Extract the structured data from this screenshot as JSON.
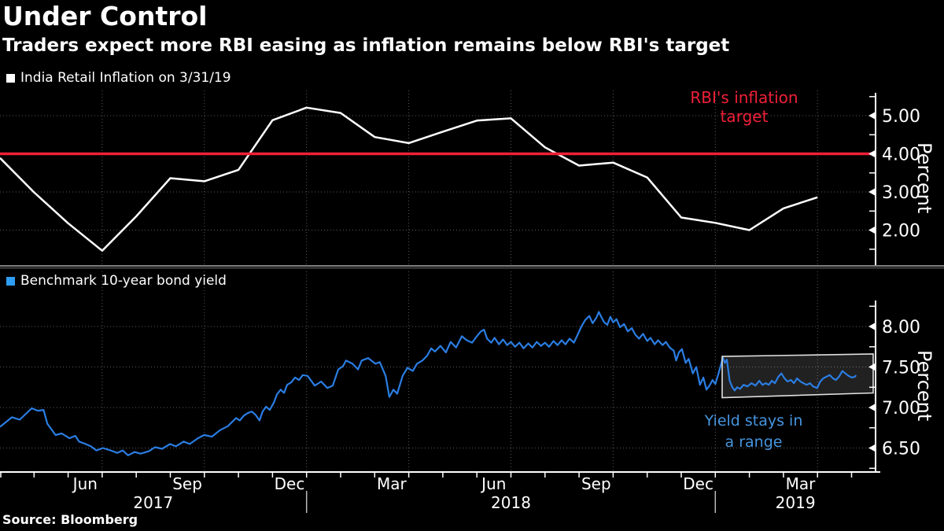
{
  "header": {
    "title": "Under Control",
    "subtitle": "Traders expect more RBI easing as inflation remains below RBI's target"
  },
  "source": "Source: Bloomberg",
  "colors": {
    "background": "#000000",
    "text": "#ffffff",
    "grid": "#5a5a5a",
    "axis": "#ffffff",
    "separator": "#2e2e2e",
    "separator_edge": "#8c8c8c",
    "highlight_box_border": "#e0e0e0"
  },
  "x_axis": {
    "months_total": 25,
    "quarter_gridlines_t": [
      3,
      6,
      9,
      12,
      15,
      18,
      21,
      24
    ],
    "month_labels": [
      {
        "t": 2.5,
        "label": "Jun"
      },
      {
        "t": 5.5,
        "label": "Sep"
      },
      {
        "t": 8.5,
        "label": "Dec"
      },
      {
        "t": 11.5,
        "label": "Mar"
      },
      {
        "t": 14.5,
        "label": "Jun"
      },
      {
        "t": 17.5,
        "label": "Sep"
      },
      {
        "t": 20.5,
        "label": "Dec"
      },
      {
        "t": 23.5,
        "label": "Mar"
      }
    ],
    "year_labels": [
      {
        "t": 4.5,
        "label": "2017"
      },
      {
        "t": 15.0,
        "label": "2018"
      },
      {
        "t": 23.35,
        "label": "2019"
      }
    ],
    "year_separators_t": [
      9,
      21
    ]
  },
  "chart_data": [
    {
      "type": "line",
      "panel": "top",
      "legend": "India Retail Inflation on 3/31/19",
      "legend_color": "#ffffff",
      "reference_line": {
        "value": 4.0,
        "label": "RBI's inflation\ntarget",
        "color": "#ef2038"
      },
      "y_axis": {
        "unit_label": "Percent",
        "ticks": [
          {
            "v": 5.0,
            "label": "5.00"
          },
          {
            "v": 4.0,
            "label": "4.00"
          },
          {
            "v": 3.0,
            "label": "3.00"
          },
          {
            "v": 2.0,
            "label": "2.00"
          }
        ],
        "minor": [
          5.5,
          4.5,
          3.5,
          2.5,
          1.5
        ]
      },
      "series": [
        {
          "name": "India Retail Inflation (YoY %)",
          "color": "#ffffff",
          "x_months_since_apr2017": [
            0,
            1,
            2,
            3,
            4,
            5,
            6,
            7,
            8,
            9,
            10,
            11,
            12,
            13,
            14,
            15,
            16,
            17,
            18,
            19,
            20,
            21,
            22,
            23,
            24
          ],
          "values": [
            3.89,
            2.99,
            2.18,
            1.46,
            2.36,
            3.36,
            3.28,
            3.58,
            4.88,
            5.21,
            5.07,
            4.44,
            4.28,
            4.58,
            4.87,
            4.93,
            4.17,
            3.69,
            3.77,
            3.38,
            2.33,
            2.19,
            2.0,
            2.57,
            2.86
          ]
        }
      ]
    },
    {
      "type": "line",
      "panel": "bottom",
      "legend": "Benchmark 10-year bond yield",
      "legend_color": "#2e9df4",
      "annotation": {
        "text": "Yield stays in\na range",
        "color": "#4695e0"
      },
      "highlight_box": {
        "t_range": [
          21.2,
          25.64
        ],
        "top_values": [
          7.63,
          7.66
        ],
        "bottom_values": [
          7.12,
          7.18
        ]
      },
      "y_axis": {
        "unit_label": "Percent",
        "ticks": [
          {
            "v": 8.0,
            "label": "8.00"
          },
          {
            "v": 7.5,
            "label": "7.50"
          },
          {
            "v": 7.0,
            "label": "7.00"
          },
          {
            "v": 6.5,
            "label": "6.50"
          }
        ],
        "minor": [
          8.25,
          7.75,
          7.25,
          6.75,
          6.25
        ]
      },
      "series": [
        {
          "name": "Benchmark 10-year bond yield (%)",
          "color": "#2b7de2",
          "points": [
            [
              0,
              6.76
            ],
            [
              0.35,
              6.88
            ],
            [
              0.58,
              6.85
            ],
            [
              0.93,
              6.99
            ],
            [
              1.11,
              6.96
            ],
            [
              1.28,
              6.97
            ],
            [
              1.39,
              6.8
            ],
            [
              1.63,
              6.66
            ],
            [
              1.81,
              6.68
            ],
            [
              2.04,
              6.62
            ],
            [
              2.21,
              6.65
            ],
            [
              2.32,
              6.58
            ],
            [
              2.51,
              6.55
            ],
            [
              2.67,
              6.52
            ],
            [
              2.83,
              6.47
            ],
            [
              3.02,
              6.5
            ],
            [
              3.25,
              6.47
            ],
            [
              3.44,
              6.44
            ],
            [
              3.6,
              6.47
            ],
            [
              3.76,
              6.41
            ],
            [
              3.95,
              6.45
            ],
            [
              4.13,
              6.43
            ],
            [
              4.37,
              6.46
            ],
            [
              4.55,
              6.51
            ],
            [
              4.76,
              6.49
            ],
            [
              4.99,
              6.55
            ],
            [
              5.16,
              6.52
            ],
            [
              5.39,
              6.58
            ],
            [
              5.57,
              6.55
            ],
            [
              5.81,
              6.62
            ],
            [
              5.99,
              6.66
            ],
            [
              6.22,
              6.64
            ],
            [
              6.46,
              6.72
            ],
            [
              6.69,
              6.77
            ],
            [
              6.93,
              6.87
            ],
            [
              7.04,
              6.84
            ],
            [
              7.16,
              6.9
            ],
            [
              7.27,
              6.93
            ],
            [
              7.39,
              6.95
            ],
            [
              7.5,
              6.91
            ],
            [
              7.62,
              6.84
            ],
            [
              7.71,
              6.95
            ],
            [
              7.81,
              7.01
            ],
            [
              7.92,
              6.97
            ],
            [
              8.04,
              7.06
            ],
            [
              8.13,
              7.16
            ],
            [
              8.24,
              7.22
            ],
            [
              8.34,
              7.18
            ],
            [
              8.43,
              7.28
            ],
            [
              8.55,
              7.31
            ],
            [
              8.66,
              7.37
            ],
            [
              8.78,
              7.34
            ],
            [
              8.89,
              7.4
            ],
            [
              9.03,
              7.39
            ],
            [
              9.24,
              7.27
            ],
            [
              9.43,
              7.32
            ],
            [
              9.61,
              7.24
            ],
            [
              9.77,
              7.27
            ],
            [
              9.93,
              7.47
            ],
            [
              10.07,
              7.51
            ],
            [
              10.16,
              7.58
            ],
            [
              10.35,
              7.54
            ],
            [
              10.51,
              7.47
            ],
            [
              10.62,
              7.58
            ],
            [
              10.81,
              7.61
            ],
            [
              11.02,
              7.54
            ],
            [
              11.15,
              7.56
            ],
            [
              11.32,
              7.39
            ],
            [
              11.43,
              7.13
            ],
            [
              11.55,
              7.22
            ],
            [
              11.66,
              7.17
            ],
            [
              11.82,
              7.39
            ],
            [
              11.96,
              7.49
            ],
            [
              12.12,
              7.45
            ],
            [
              12.24,
              7.54
            ],
            [
              12.4,
              7.58
            ],
            [
              12.54,
              7.64
            ],
            [
              12.66,
              7.73
            ],
            [
              12.77,
              7.69
            ],
            [
              12.93,
              7.76
            ],
            [
              13.09,
              7.68
            ],
            [
              13.23,
              7.81
            ],
            [
              13.39,
              7.74
            ],
            [
              13.56,
              7.88
            ],
            [
              13.7,
              7.83
            ],
            [
              13.86,
              7.8
            ],
            [
              14.0,
              7.88
            ],
            [
              14.12,
              7.94
            ],
            [
              14.21,
              7.96
            ],
            [
              14.3,
              7.85
            ],
            [
              14.42,
              7.8
            ],
            [
              14.52,
              7.86
            ],
            [
              14.65,
              7.78
            ],
            [
              14.77,
              7.84
            ],
            [
              14.89,
              7.77
            ],
            [
              15.0,
              7.81
            ],
            [
              15.12,
              7.75
            ],
            [
              15.25,
              7.8
            ],
            [
              15.37,
              7.73
            ],
            [
              15.51,
              7.79
            ],
            [
              15.63,
              7.74
            ],
            [
              15.76,
              7.81
            ],
            [
              15.88,
              7.76
            ],
            [
              16.0,
              7.8
            ],
            [
              16.12,
              7.75
            ],
            [
              16.25,
              7.82
            ],
            [
              16.37,
              7.77
            ],
            [
              16.49,
              7.83
            ],
            [
              16.6,
              7.78
            ],
            [
              16.72,
              7.85
            ],
            [
              16.85,
              7.8
            ],
            [
              16.95,
              7.89
            ],
            [
              17.07,
              8.0
            ],
            [
              17.18,
              8.08
            ],
            [
              17.3,
              8.13
            ],
            [
              17.4,
              8.04
            ],
            [
              17.51,
              8.11
            ],
            [
              17.58,
              8.18
            ],
            [
              17.65,
              8.12
            ],
            [
              17.74,
              8.05
            ],
            [
              17.83,
              8.02
            ],
            [
              17.92,
              8.12
            ],
            [
              18.0,
              8.05
            ],
            [
              18.1,
              8.09
            ],
            [
              18.2,
              7.99
            ],
            [
              18.32,
              8.03
            ],
            [
              18.43,
              7.94
            ],
            [
              18.55,
              7.98
            ],
            [
              18.65,
              7.9
            ],
            [
              18.76,
              7.85
            ],
            [
              18.88,
              7.91
            ],
            [
              19.0,
              7.82
            ],
            [
              19.1,
              7.86
            ],
            [
              19.22,
              7.78
            ],
            [
              19.32,
              7.83
            ],
            [
              19.45,
              7.77
            ],
            [
              19.55,
              7.81
            ],
            [
              19.66,
              7.74
            ],
            [
              19.78,
              7.7
            ],
            [
              19.85,
              7.58
            ],
            [
              19.93,
              7.68
            ],
            [
              20.02,
              7.72
            ],
            [
              20.13,
              7.55
            ],
            [
              20.22,
              7.6
            ],
            [
              20.34,
              7.42
            ],
            [
              20.44,
              7.5
            ],
            [
              20.55,
              7.28
            ],
            [
              20.65,
              7.37
            ],
            [
              20.74,
              7.22
            ],
            [
              20.83,
              7.27
            ],
            [
              20.92,
              7.34
            ],
            [
              21.0,
              7.29
            ],
            [
              21.08,
              7.4
            ],
            [
              21.16,
              7.52
            ],
            [
              21.22,
              7.62
            ],
            [
              21.28,
              7.55
            ],
            [
              21.34,
              7.59
            ],
            [
              21.42,
              7.33
            ],
            [
              21.5,
              7.25
            ],
            [
              21.57,
              7.21
            ],
            [
              21.64,
              7.25
            ],
            [
              21.73,
              7.23
            ],
            [
              21.83,
              7.28
            ],
            [
              21.94,
              7.26
            ],
            [
              22.06,
              7.3
            ],
            [
              22.18,
              7.27
            ],
            [
              22.29,
              7.33
            ],
            [
              22.38,
              7.28
            ],
            [
              22.48,
              7.3
            ],
            [
              22.57,
              7.28
            ],
            [
              22.66,
              7.33
            ],
            [
              22.75,
              7.3
            ],
            [
              22.85,
              7.38
            ],
            [
              22.94,
              7.42
            ],
            [
              23.03,
              7.36
            ],
            [
              23.12,
              7.32
            ],
            [
              23.22,
              7.34
            ],
            [
              23.31,
              7.3
            ],
            [
              23.4,
              7.36
            ],
            [
              23.5,
              7.32
            ],
            [
              23.59,
              7.3
            ],
            [
              23.68,
              7.28
            ],
            [
              23.78,
              7.3
            ],
            [
              23.87,
              7.26
            ],
            [
              23.99,
              7.24
            ],
            [
              24.08,
              7.32
            ],
            [
              24.17,
              7.36
            ],
            [
              24.26,
              7.38
            ],
            [
              24.36,
              7.4
            ],
            [
              24.45,
              7.36
            ],
            [
              24.54,
              7.34
            ],
            [
              24.63,
              7.38
            ],
            [
              24.73,
              7.45
            ],
            [
              24.82,
              7.42
            ],
            [
              24.91,
              7.39
            ],
            [
              25.01,
              7.37
            ],
            [
              25.1,
              7.38
            ],
            [
              25.13,
              7.4
            ]
          ]
        }
      ]
    }
  ]
}
